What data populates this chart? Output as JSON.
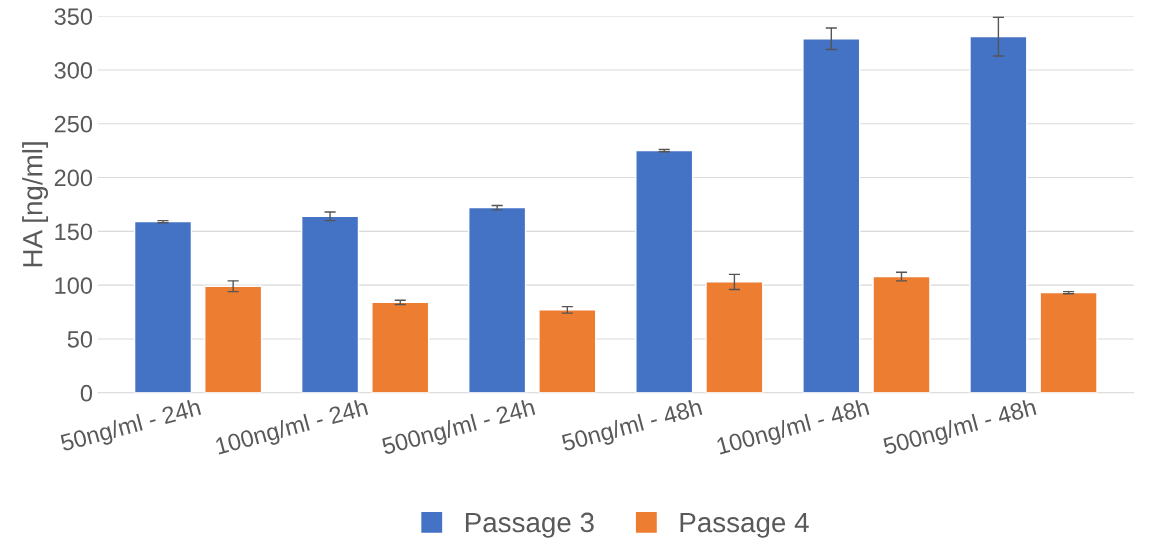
{
  "chart_data": {
    "type": "bar",
    "ylabel": "HA [ng/ml]",
    "categories": [
      "50ng/ml - 24h",
      "100ng/ml - 24h",
      "500ng/ml - 24h",
      "50ng/ml - 48h",
      "100ng/ml - 48h",
      "500ng/ml - 48h"
    ],
    "series": [
      {
        "name": "Passage 3",
        "color": "#4472c4",
        "values": [
          159,
          164,
          172,
          225,
          329,
          331
        ],
        "errors": [
          1,
          4,
          2,
          1,
          10,
          18
        ]
      },
      {
        "name": "Passage 4",
        "color": "#ed7d31",
        "values": [
          99,
          84,
          77,
          103,
          108,
          93
        ],
        "errors": [
          5,
          2,
          3,
          7,
          4,
          1
        ]
      }
    ],
    "ylim": [
      0,
      350
    ],
    "yticks": [
      0,
      50,
      100,
      150,
      200,
      250,
      300,
      350
    ],
    "grid": "y",
    "legend": "bottom"
  }
}
